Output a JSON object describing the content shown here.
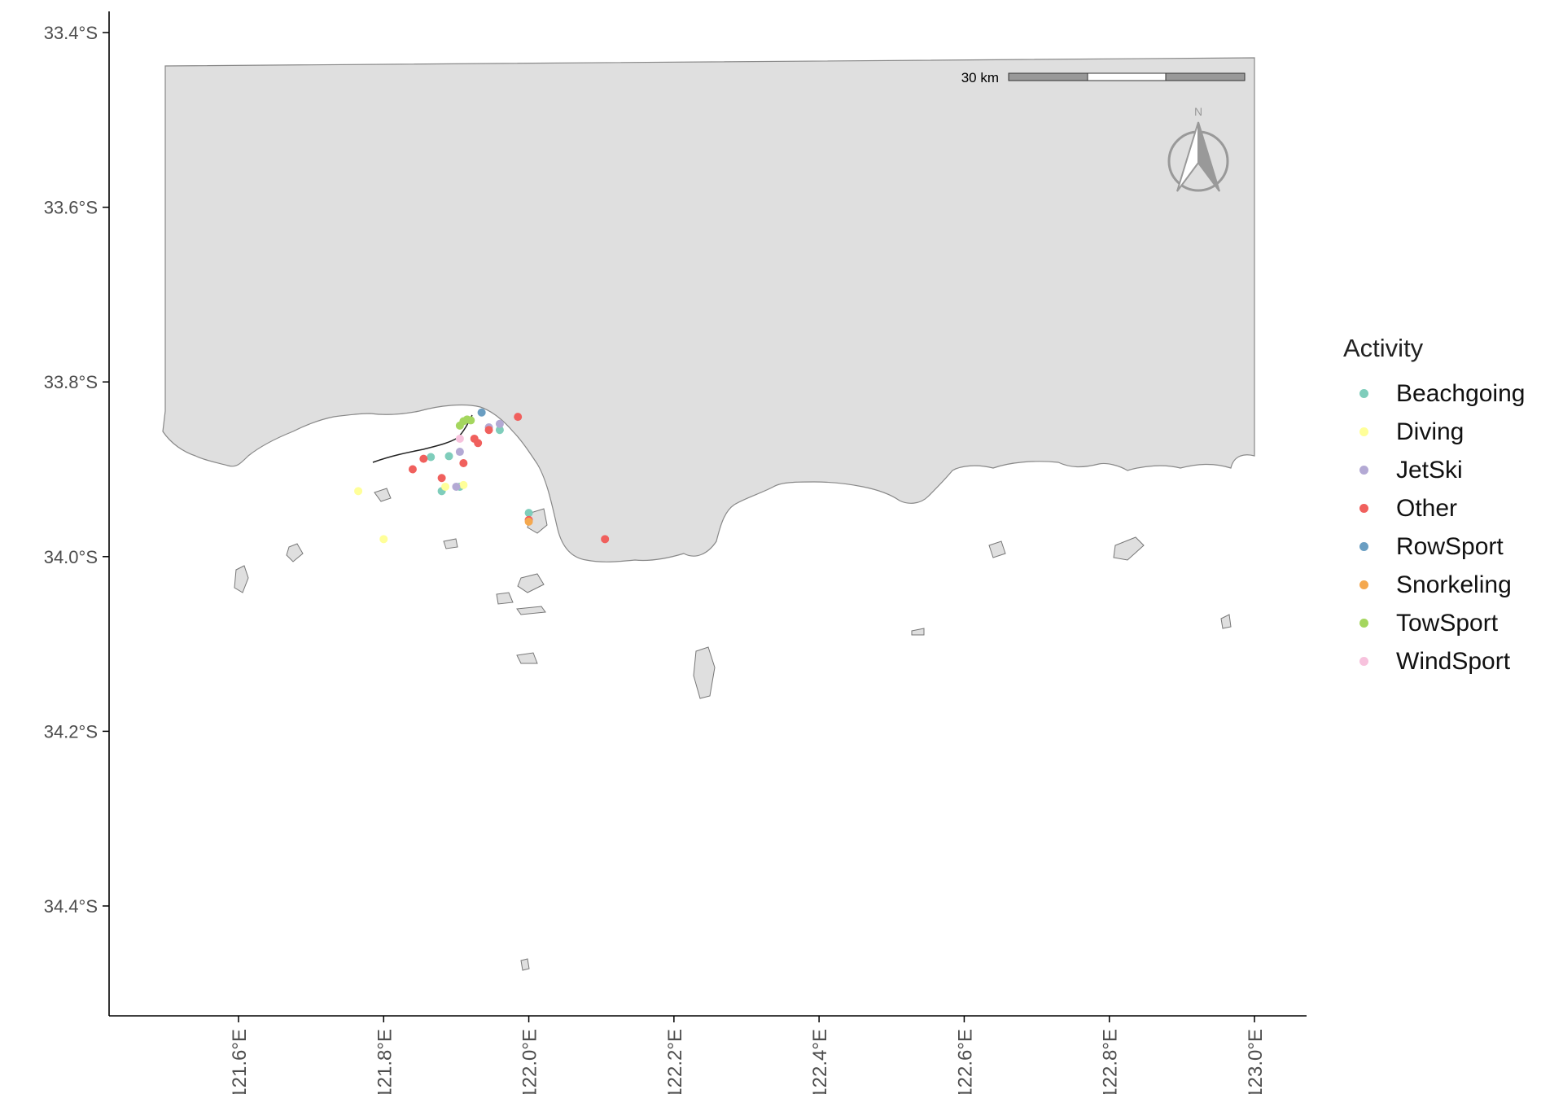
{
  "legend": {
    "title": "Activity",
    "items": [
      {
        "label": "Beachgoing",
        "color": "#7fcdbb"
      },
      {
        "label": "Diving",
        "color": "#ffff99"
      },
      {
        "label": "JetSki",
        "color": "#b3a9d4"
      },
      {
        "label": "Other",
        "color": "#f0605d"
      },
      {
        "label": "RowSport",
        "color": "#6a9ec2"
      },
      {
        "label": "Snorkeling",
        "color": "#f4a84f"
      },
      {
        "label": "TowSport",
        "color": "#a4d65e"
      },
      {
        "label": "WindSport",
        "color": "#f7c2dd"
      }
    ]
  },
  "scale_bar": {
    "label": "30 km"
  },
  "north_arrow": {
    "label": "N"
  },
  "colors": {
    "land": "#dfdfdf",
    "coast": "#888888",
    "axis": "#000000",
    "tick_text": "#4d4d4d",
    "marker": "#999999"
  },
  "chart_data": {
    "type": "scatter",
    "title": "",
    "xlabel": "",
    "ylabel": "",
    "xlim": [
      121.42,
      123.07
    ],
    "ylim": [
      -34.53,
      -33.37
    ],
    "x_ticks": [
      121.6,
      121.8,
      122.0,
      122.2,
      122.4,
      122.6,
      122.8,
      123.0
    ],
    "x_tick_labels": [
      "121.6°E",
      "121.8°E",
      "122.0°E",
      "122.2°E",
      "122.4°E",
      "122.6°E",
      "122.8°E",
      "123.0°E"
    ],
    "y_ticks": [
      -33.4,
      -33.6,
      -33.8,
      -34.0,
      -34.2,
      -34.4
    ],
    "y_tick_labels": [
      "33.4°S",
      "33.6°S",
      "33.8°S",
      "34.0°S",
      "34.2°S",
      "34.4°S"
    ],
    "legend_position": "right",
    "grid": false,
    "series": [
      {
        "name": "Beachgoing",
        "points": [
          [
            121.865,
            -33.886
          ],
          [
            121.89,
            -33.885
          ],
          [
            121.96,
            -33.855
          ],
          [
            122.0,
            -33.95
          ],
          [
            121.88,
            -33.925
          ],
          [
            121.905,
            -33.92
          ]
        ]
      },
      {
        "name": "Diving",
        "points": [
          [
            121.765,
            -33.925
          ],
          [
            121.8,
            -33.98
          ],
          [
            121.91,
            -33.918
          ],
          [
            121.885,
            -33.92
          ]
        ]
      },
      {
        "name": "JetSki",
        "points": [
          [
            121.945,
            -33.852
          ],
          [
            121.96,
            -33.848
          ],
          [
            121.905,
            -33.88
          ],
          [
            121.9,
            -33.92
          ]
        ]
      },
      {
        "name": "Other",
        "points": [
          [
            121.84,
            -33.9
          ],
          [
            121.855,
            -33.888
          ],
          [
            121.88,
            -33.91
          ],
          [
            121.91,
            -33.893
          ],
          [
            121.925,
            -33.865
          ],
          [
            121.93,
            -33.87
          ],
          [
            121.945,
            -33.855
          ],
          [
            121.985,
            -33.84
          ],
          [
            122.0,
            -33.958
          ],
          [
            122.105,
            -33.98
          ]
        ]
      },
      {
        "name": "RowSport",
        "points": [
          [
            121.935,
            -33.835
          ]
        ]
      },
      {
        "name": "Snorkeling",
        "points": [
          [
            122.0,
            -33.96
          ]
        ]
      },
      {
        "name": "TowSport",
        "points": [
          [
            121.905,
            -33.85
          ],
          [
            121.91,
            -33.845
          ],
          [
            121.915,
            -33.843
          ],
          [
            121.92,
            -33.844
          ]
        ]
      },
      {
        "name": "WindSport",
        "points": [
          [
            121.905,
            -33.865
          ]
        ]
      }
    ]
  }
}
